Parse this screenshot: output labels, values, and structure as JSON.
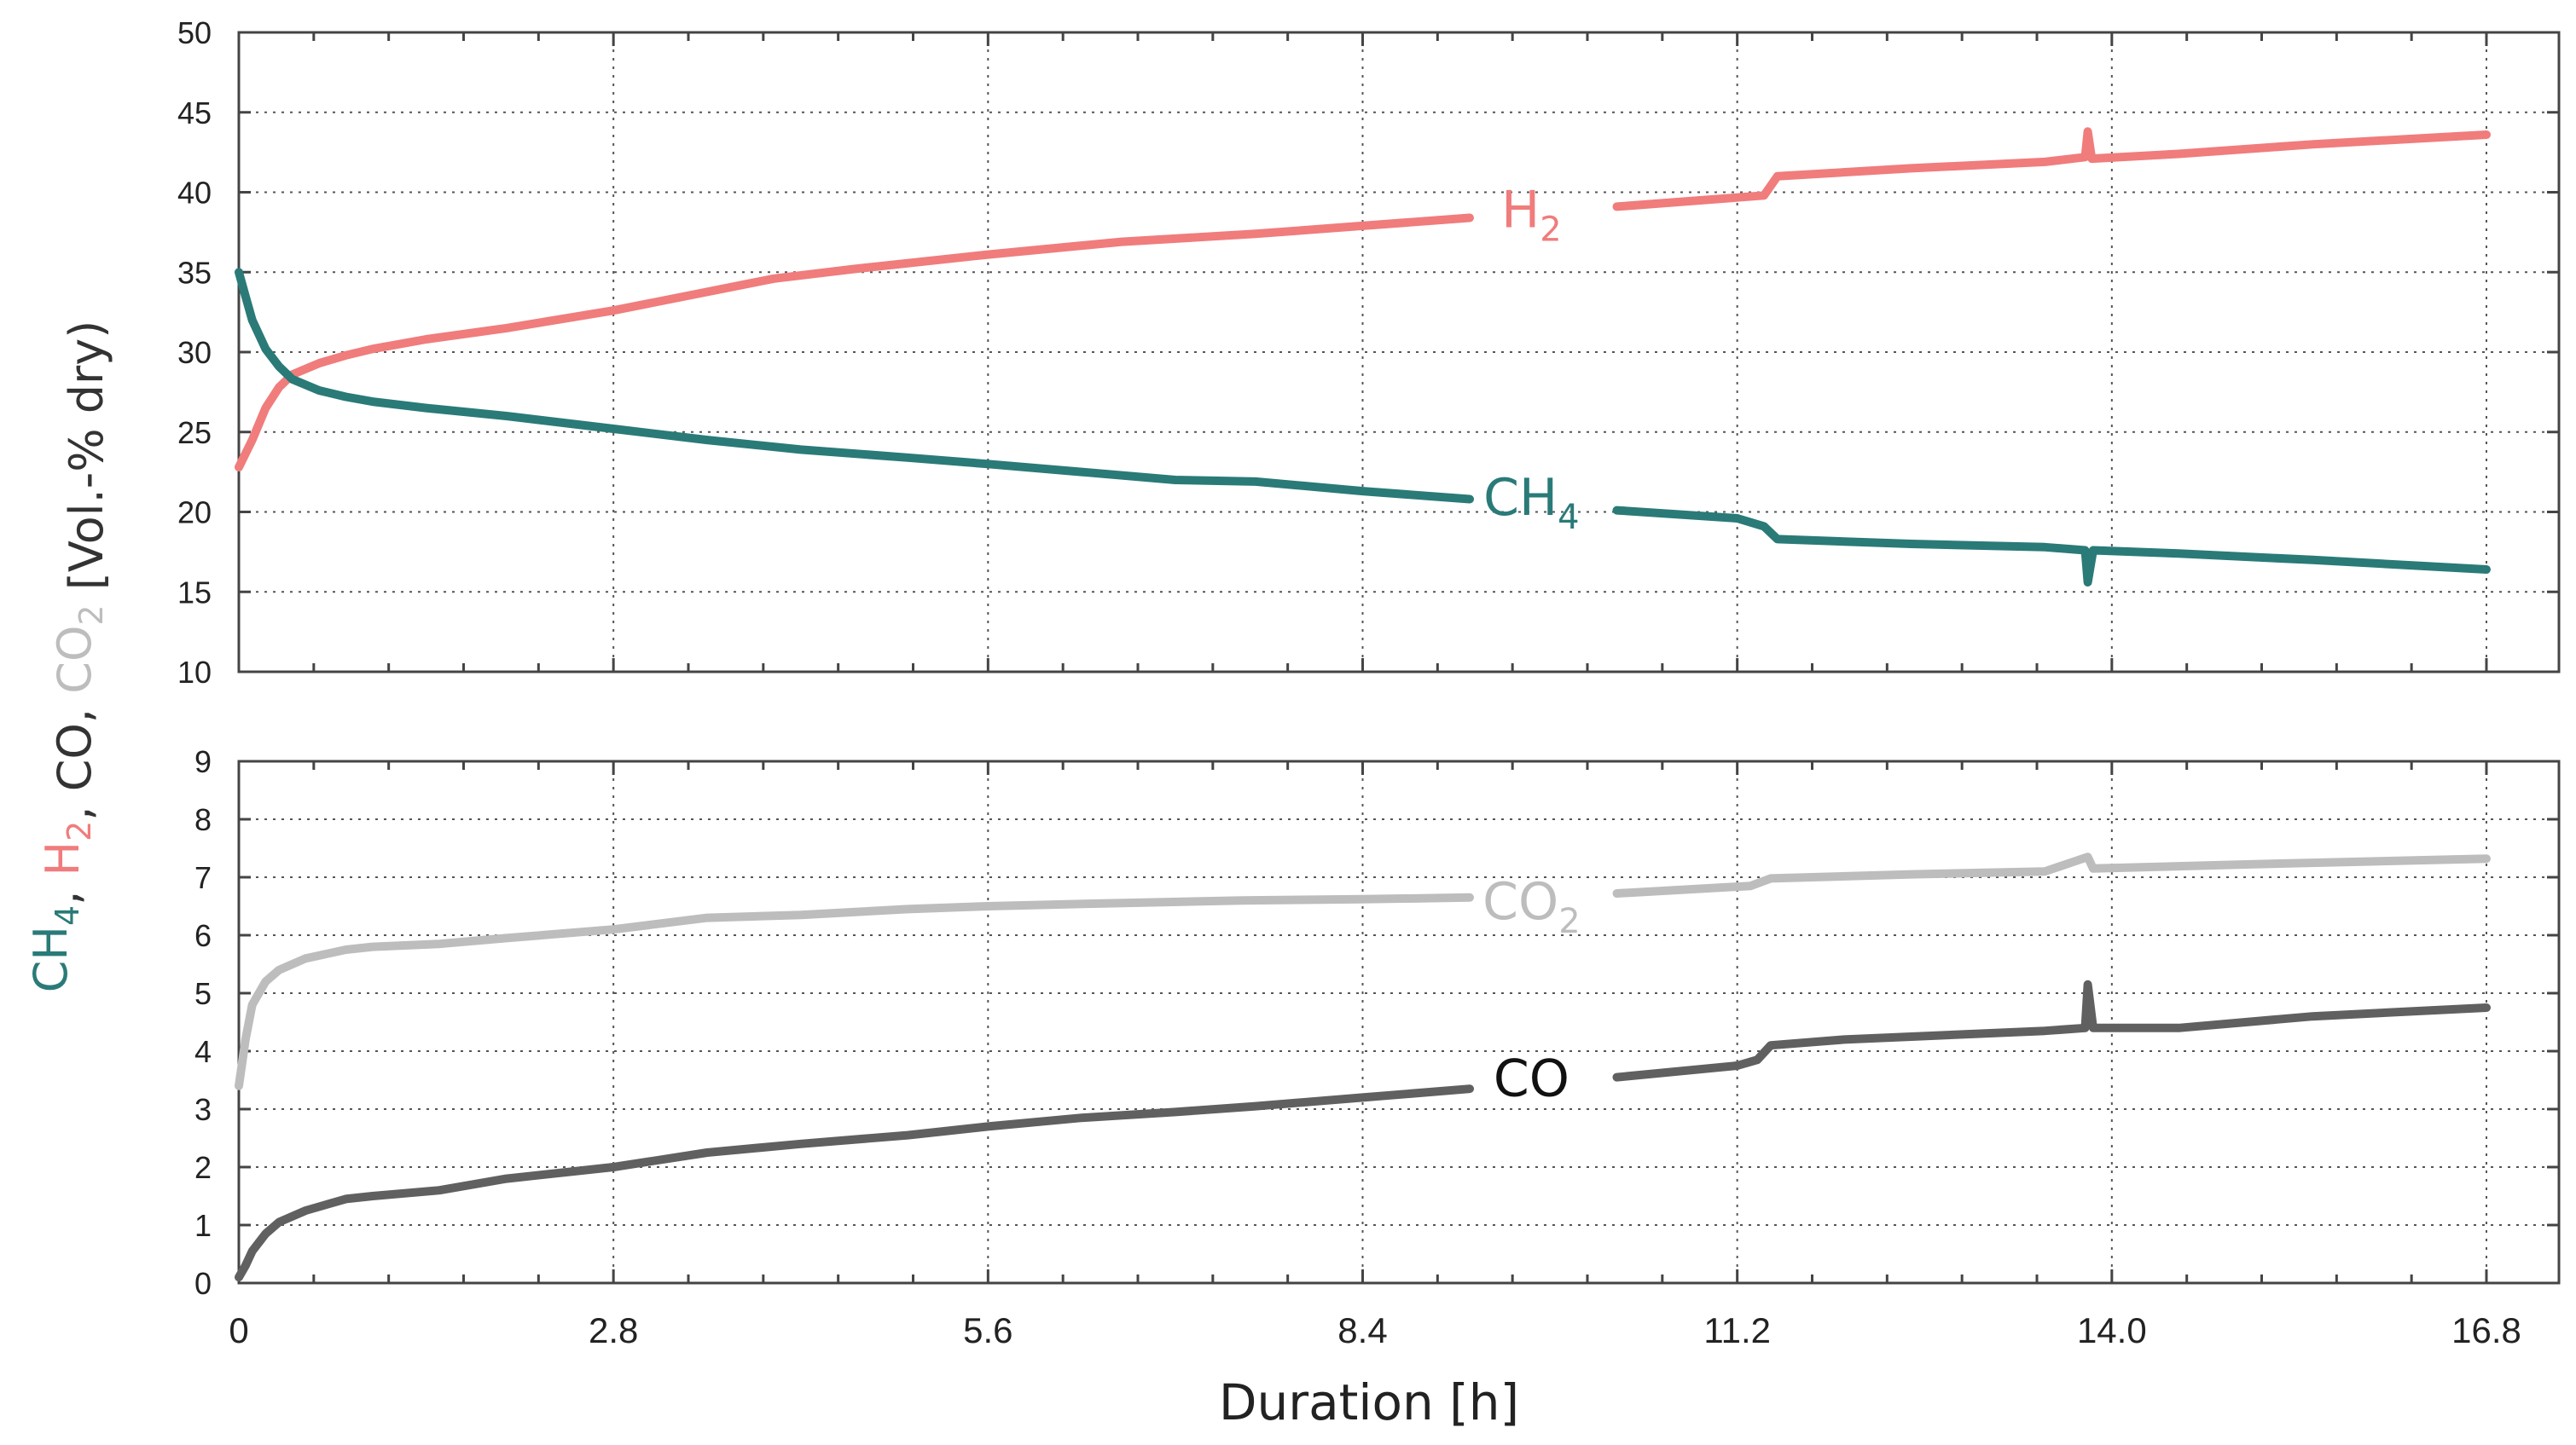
{
  "chart_data": [
    {
      "id": "top",
      "type": "line",
      "ylim": [
        10,
        50
      ],
      "yticks": [
        10,
        15,
        20,
        25,
        30,
        35,
        40,
        45,
        50
      ],
      "xlim": [
        0,
        16.8
      ],
      "grid": true,
      "series": [
        {
          "name": "H2",
          "label_main": "H",
          "label_sub": "2",
          "color": "#f07c7c",
          "segments": [
            [
              [
                0,
                22.8
              ],
              [
                0.1,
                24.5
              ],
              [
                0.2,
                26.5
              ],
              [
                0.3,
                27.8
              ],
              [
                0.4,
                28.6
              ],
              [
                0.6,
                29.3
              ],
              [
                0.8,
                29.8
              ],
              [
                1.0,
                30.2
              ],
              [
                1.4,
                30.8
              ],
              [
                2.0,
                31.5
              ],
              [
                2.8,
                32.6
              ],
              [
                3.4,
                33.6
              ],
              [
                4.0,
                34.6
              ],
              [
                4.6,
                35.2
              ],
              [
                5.6,
                36.1
              ],
              [
                6.6,
                36.9
              ],
              [
                7.6,
                37.4
              ],
              [
                8.4,
                37.9
              ],
              [
                9.2,
                38.4
              ]
            ],
            [
              [
                10.3,
                39.1
              ],
              [
                11.4,
                39.8
              ],
              [
                11.5,
                41.0
              ],
              [
                12.5,
                41.5
              ],
              [
                13.5,
                41.9
              ],
              [
                13.8,
                42.2
              ],
              [
                13.82,
                43.8
              ],
              [
                13.85,
                42.1
              ],
              [
                14.5,
                42.4
              ],
              [
                15.5,
                43.0
              ],
              [
                16.8,
                43.6
              ]
            ]
          ]
        },
        {
          "name": "CH4",
          "label_main": "CH",
          "label_sub": "4",
          "color": "#2a7a78",
          "segments": [
            [
              [
                0,
                35.0
              ],
              [
                0.05,
                33.5
              ],
              [
                0.1,
                32.0
              ],
              [
                0.2,
                30.2
              ],
              [
                0.3,
                29.1
              ],
              [
                0.4,
                28.3
              ],
              [
                0.6,
                27.6
              ],
              [
                0.8,
                27.2
              ],
              [
                1.0,
                26.9
              ],
              [
                1.4,
                26.5
              ],
              [
                2.0,
                26.0
              ],
              [
                2.8,
                25.2
              ],
              [
                3.5,
                24.5
              ],
              [
                4.2,
                23.9
              ],
              [
                5.0,
                23.4
              ],
              [
                5.6,
                23.0
              ],
              [
                6.3,
                22.5
              ],
              [
                7.0,
                22.0
              ],
              [
                7.6,
                21.9
              ],
              [
                8.4,
                21.3
              ],
              [
                9.2,
                20.8
              ]
            ],
            [
              [
                10.3,
                20.1
              ],
              [
                11.2,
                19.6
              ],
              [
                11.4,
                19.1
              ],
              [
                11.5,
                18.3
              ],
              [
                12.5,
                18.0
              ],
              [
                13.5,
                17.8
              ],
              [
                13.8,
                17.6
              ],
              [
                13.82,
                15.6
              ],
              [
                13.86,
                17.6
              ],
              [
                14.5,
                17.4
              ],
              [
                15.5,
                17.0
              ],
              [
                16.8,
                16.4
              ]
            ]
          ]
        }
      ],
      "labels": {
        "H2_at": [
          9.7,
          39.0
        ],
        "CH4_at": [
          9.7,
          21.0
        ]
      }
    },
    {
      "id": "bottom",
      "type": "line",
      "ylim": [
        0,
        9
      ],
      "yticks": [
        0,
        1,
        2,
        3,
        4,
        5,
        6,
        7,
        8,
        9
      ],
      "xlim": [
        0,
        16.8
      ],
      "xticks": [
        0,
        2.8,
        5.6,
        8.4,
        11.2,
        14.0,
        16.8
      ],
      "xtick_labels": [
        "0",
        "2.8",
        "5.6",
        "8.4",
        "11.2",
        "14.0",
        "16.8"
      ],
      "xlabel": "Duration [h]",
      "grid": true,
      "series": [
        {
          "name": "CO2",
          "label_main": "CO",
          "label_sub": "2",
          "color": "#bdbdbd",
          "segments": [
            [
              [
                0,
                3.4
              ],
              [
                0.05,
                4.2
              ],
              [
                0.1,
                4.8
              ],
              [
                0.2,
                5.2
              ],
              [
                0.3,
                5.4
              ],
              [
                0.5,
                5.6
              ],
              [
                0.8,
                5.75
              ],
              [
                1.0,
                5.8
              ],
              [
                1.5,
                5.85
              ],
              [
                2.0,
                5.95
              ],
              [
                2.8,
                6.1
              ],
              [
                3.5,
                6.3
              ],
              [
                4.2,
                6.35
              ],
              [
                5.0,
                6.45
              ],
              [
                5.6,
                6.5
              ],
              [
                6.5,
                6.55
              ],
              [
                7.5,
                6.6
              ],
              [
                8.4,
                6.62
              ],
              [
                9.2,
                6.65
              ]
            ],
            [
              [
                10.3,
                6.72
              ],
              [
                11.3,
                6.85
              ],
              [
                11.45,
                6.98
              ],
              [
                12.5,
                7.05
              ],
              [
                13.5,
                7.1
              ],
              [
                13.82,
                7.35
              ],
              [
                13.86,
                7.15
              ],
              [
                15.0,
                7.22
              ],
              [
                16.8,
                7.32
              ]
            ]
          ]
        },
        {
          "name": "CO",
          "label_main": "CO",
          "label_sub": "",
          "color": "#606060",
          "segments": [
            [
              [
                0,
                0.1
              ],
              [
                0.05,
                0.3
              ],
              [
                0.1,
                0.55
              ],
              [
                0.2,
                0.85
              ],
              [
                0.3,
                1.05
              ],
              [
                0.5,
                1.25
              ],
              [
                0.8,
                1.45
              ],
              [
                1.0,
                1.5
              ],
              [
                1.5,
                1.6
              ],
              [
                2.0,
                1.8
              ],
              [
                2.8,
                2.0
              ],
              [
                3.5,
                2.25
              ],
              [
                4.2,
                2.4
              ],
              [
                5.0,
                2.55
              ],
              [
                5.6,
                2.7
              ],
              [
                6.3,
                2.85
              ],
              [
                7.0,
                2.95
              ],
              [
                7.6,
                3.05
              ],
              [
                8.4,
                3.2
              ],
              [
                9.2,
                3.35
              ]
            ],
            [
              [
                10.3,
                3.55
              ],
              [
                11.2,
                3.75
              ],
              [
                11.35,
                3.85
              ],
              [
                11.45,
                4.1
              ],
              [
                12.0,
                4.2
              ],
              [
                12.5,
                4.25
              ],
              [
                13.5,
                4.35
              ],
              [
                13.8,
                4.4
              ],
              [
                13.82,
                5.15
              ],
              [
                13.86,
                4.4
              ],
              [
                14.5,
                4.4
              ],
              [
                15.5,
                4.6
              ],
              [
                16.8,
                4.75
              ]
            ]
          ]
        }
      ],
      "labels": {
        "CO2_at": [
          9.7,
          6.6
        ],
        "CO_at": [
          9.7,
          3.55
        ]
      }
    }
  ],
  "ylabel": {
    "parts": [
      {
        "main": "CH",
        "sub": "4",
        "color": "#2a7a78"
      },
      {
        "main": ", ",
        "sub": "",
        "color": "#333333"
      },
      {
        "main": "H",
        "sub": "2",
        "color": "#f07c7c"
      },
      {
        "main": ", CO, ",
        "sub": "",
        "color": "#333333"
      },
      {
        "main": "CO",
        "sub": "2",
        "color": "#bdbdbd"
      },
      {
        "main": " [Vol.-% dry)",
        "sub": "",
        "color": "#333333"
      }
    ]
  }
}
